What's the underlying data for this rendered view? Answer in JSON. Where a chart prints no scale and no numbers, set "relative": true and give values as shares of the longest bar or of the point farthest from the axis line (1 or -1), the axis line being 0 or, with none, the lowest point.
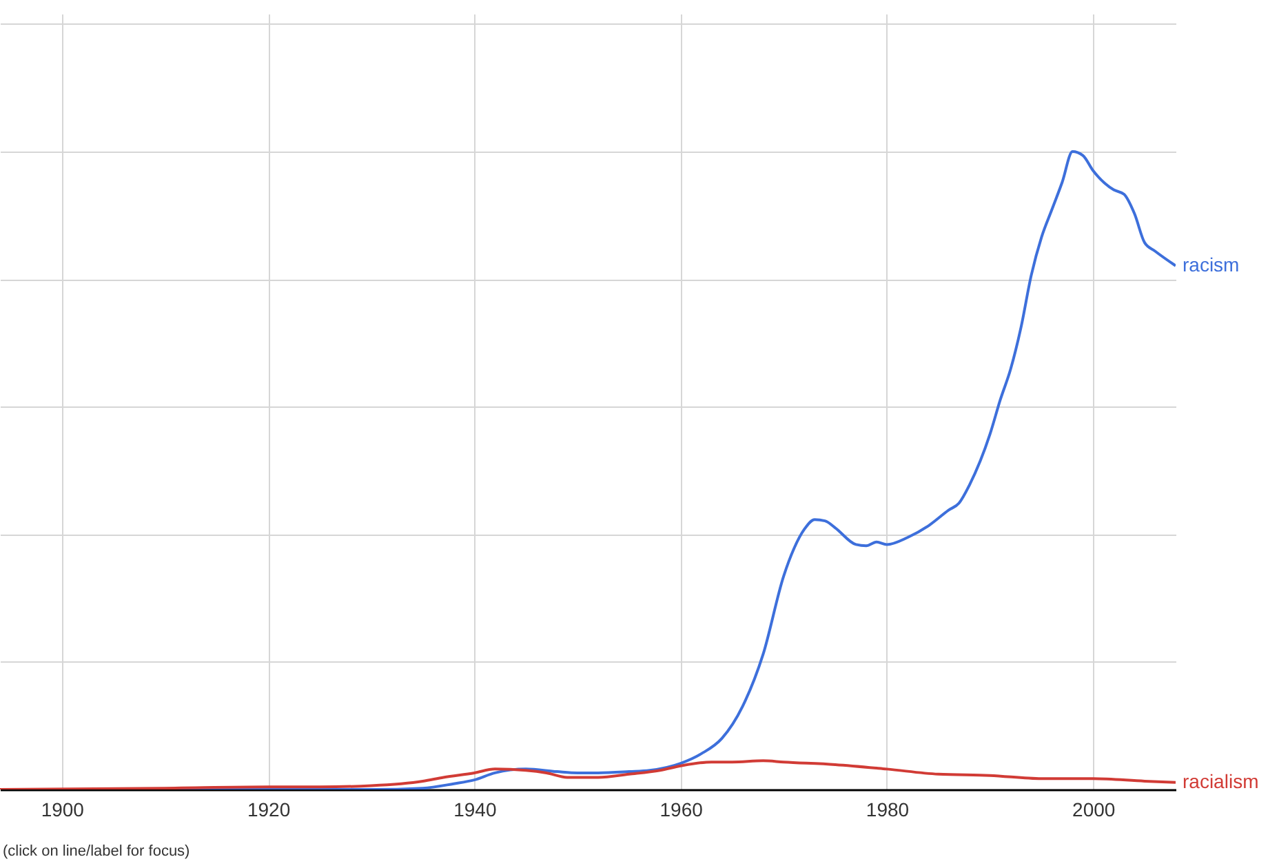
{
  "chart_data": {
    "type": "line",
    "relative": true,
    "xlim": [
      1894,
      2008
    ],
    "xticks": [
      1900,
      1920,
      1940,
      1960,
      1980,
      2000
    ],
    "grid": true,
    "annotations": [
      "(click on line/label for focus)"
    ],
    "series": [
      {
        "name": "racism",
        "color": "#3d6fdb",
        "x": [
          1894,
          1930,
          1935,
          1938,
          1940,
          1942,
          1945,
          1948,
          1950,
          1952,
          1955,
          1957,
          1960,
          1962,
          1964,
          1966,
          1968,
          1970,
          1971,
          1972,
          1973,
          1974,
          1975,
          1977,
          1978,
          1979,
          1980,
          1982,
          1984,
          1986,
          1987,
          1988,
          1990,
          1991,
          1992,
          1993,
          1994,
          1995,
          1996,
          1997,
          1998,
          1999,
          2000,
          2002,
          2003,
          2004,
          2005,
          2006,
          2008
        ],
        "values": [
          0,
          0,
          0.002,
          0.009,
          0.015,
          0.026,
          0.032,
          0.028,
          0.026,
          0.026,
          0.028,
          0.03,
          0.041,
          0.056,
          0.08,
          0.13,
          0.212,
          0.335,
          0.378,
          0.408,
          0.423,
          0.421,
          0.41,
          0.384,
          0.382,
          0.388,
          0.384,
          0.395,
          0.413,
          0.438,
          0.449,
          0.477,
          0.557,
          0.611,
          0.659,
          0.724,
          0.806,
          0.866,
          0.909,
          0.952,
          1,
          0.994,
          0.97,
          0.94,
          0.933,
          0.903,
          0.857,
          0.844,
          0.821
        ]
      },
      {
        "name": "racialism",
        "color": "#d13b35",
        "x": [
          1894,
          1910,
          1920,
          1925,
          1930,
          1935,
          1937,
          1940,
          1942,
          1945,
          1947,
          1949,
          1952,
          1955,
          1958,
          1960,
          1963,
          1965,
          1968,
          1970,
          1975,
          1980,
          1985,
          1990,
          1995,
          2000,
          2005,
          2008
        ],
        "values": [
          0,
          0.002,
          0.004,
          0.004,
          0.006,
          0.013,
          0.019,
          0.026,
          0.032,
          0.03,
          0.026,
          0.019,
          0.019,
          0.024,
          0.03,
          0.037,
          0.043,
          0.043,
          0.045,
          0.043,
          0.039,
          0.032,
          0.024,
          0.022,
          0.017,
          0.017,
          0.013,
          0.011
        ]
      }
    ]
  }
}
